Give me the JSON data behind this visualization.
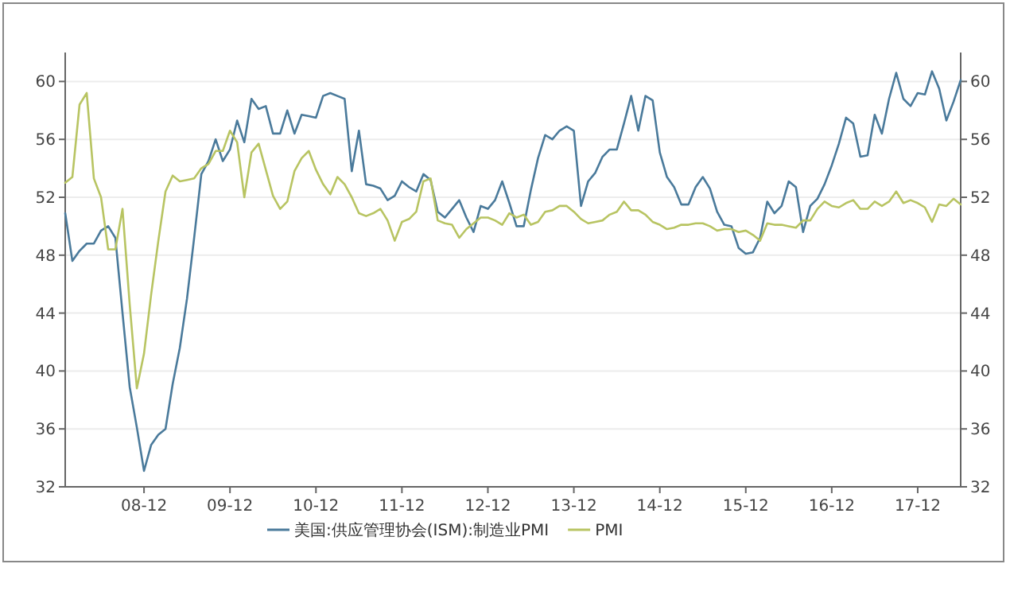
{
  "chart_data": {
    "type": "line",
    "x": [
      "2008-01",
      "2008-02",
      "2008-03",
      "2008-04",
      "2008-05",
      "2008-06",
      "2008-07",
      "2008-08",
      "2008-09",
      "2008-10",
      "2008-11",
      "2008-12",
      "2009-01",
      "2009-02",
      "2009-03",
      "2009-04",
      "2009-05",
      "2009-06",
      "2009-07",
      "2009-08",
      "2009-09",
      "2009-10",
      "2009-11",
      "2009-12",
      "2010-01",
      "2010-02",
      "2010-03",
      "2010-04",
      "2010-05",
      "2010-06",
      "2010-07",
      "2010-08",
      "2010-09",
      "2010-10",
      "2010-11",
      "2010-12",
      "2011-01",
      "2011-02",
      "2011-03",
      "2011-04",
      "2011-05",
      "2011-06",
      "2011-07",
      "2011-08",
      "2011-09",
      "2011-10",
      "2011-11",
      "2011-12",
      "2012-01",
      "2012-02",
      "2012-03",
      "2012-04",
      "2012-05",
      "2012-06",
      "2012-07",
      "2012-08",
      "2012-09",
      "2012-10",
      "2012-11",
      "2012-12",
      "2013-01",
      "2013-02",
      "2013-03",
      "2013-04",
      "2013-05",
      "2013-06",
      "2013-07",
      "2013-08",
      "2013-09",
      "2013-10",
      "2013-11",
      "2013-12",
      "2014-01",
      "2014-02",
      "2014-03",
      "2014-04",
      "2014-05",
      "2014-06",
      "2014-07",
      "2014-08",
      "2014-09",
      "2014-10",
      "2014-11",
      "2014-12",
      "2015-01",
      "2015-02",
      "2015-03",
      "2015-04",
      "2015-05",
      "2015-06",
      "2015-07",
      "2015-08",
      "2015-09",
      "2015-10",
      "2015-11",
      "2015-12",
      "2016-01",
      "2016-02",
      "2016-03",
      "2016-04",
      "2016-05",
      "2016-06",
      "2016-07",
      "2016-08",
      "2016-09",
      "2016-10",
      "2016-11",
      "2016-12",
      "2017-01",
      "2017-02",
      "2017-03",
      "2017-04",
      "2017-05",
      "2017-06",
      "2017-07",
      "2017-08",
      "2017-09",
      "2017-10",
      "2017-11",
      "2017-12",
      "2018-01",
      "2018-02",
      "2018-03",
      "2018-04",
      "2018-05",
      "2018-06"
    ],
    "series": [
      {
        "name": "美国:供应管理协会(ISM):制造业PMI",
        "color": "#4a7a9b",
        "values": [
          50.9,
          47.6,
          48.3,
          48.8,
          48.8,
          49.7,
          50.0,
          49.2,
          44.0,
          38.9,
          36.1,
          33.1,
          34.9,
          35.6,
          36.0,
          39.1,
          41.6,
          45.0,
          49.2,
          53.6,
          54.5,
          56.0,
          54.5,
          55.3,
          57.3,
          55.8,
          58.8,
          58.1,
          58.3,
          56.4,
          56.4,
          58.0,
          56.4,
          57.7,
          57.6,
          57.5,
          59.0,
          59.2,
          59.0,
          58.8,
          53.8,
          56.6,
          52.9,
          52.8,
          52.6,
          51.8,
          52.1,
          53.1,
          52.7,
          52.4,
          53.6,
          53.2,
          51.0,
          50.6,
          51.2,
          51.8,
          50.6,
          49.6,
          51.4,
          51.2,
          51.8,
          53.1,
          51.6,
          50.0,
          50.0,
          52.5,
          54.7,
          56.3,
          56.0,
          56.6,
          56.9,
          56.6,
          51.4,
          53.1,
          53.7,
          54.8,
          55.3,
          55.3,
          57.1,
          59.0,
          56.6,
          59.0,
          58.7,
          55.1,
          53.4,
          52.7,
          51.5,
          51.5,
          52.7,
          53.4,
          52.6,
          51.0,
          50.1,
          50.0,
          48.5,
          48.1,
          48.2,
          49.2,
          51.7,
          50.9,
          51.4,
          53.1,
          52.7,
          49.6,
          51.4,
          51.9,
          52.9,
          54.2,
          55.7,
          57.5,
          57.1,
          54.8,
          54.9,
          57.7,
          56.4,
          58.8,
          60.6,
          58.8,
          58.3,
          59.2,
          59.1,
          60.7,
          59.5,
          57.3,
          58.6,
          60.1
        ]
      },
      {
        "name": "PMI",
        "color": "#b8c462",
        "values": [
          53.0,
          53.4,
          58.4,
          59.2,
          53.3,
          52.0,
          48.4,
          48.4,
          51.2,
          44.6,
          38.8,
          41.2,
          45.3,
          49.0,
          52.4,
          53.5,
          53.1,
          53.2,
          53.3,
          54.0,
          54.3,
          55.2,
          55.2,
          56.6,
          55.8,
          52.0,
          55.1,
          55.7,
          53.9,
          52.1,
          51.2,
          51.7,
          53.8,
          54.7,
          55.2,
          53.9,
          52.9,
          52.2,
          53.4,
          52.9,
          52.0,
          50.9,
          50.7,
          50.9,
          51.2,
          50.4,
          49.0,
          50.3,
          50.5,
          51.0,
          53.1,
          53.3,
          50.4,
          50.2,
          50.1,
          49.2,
          49.8,
          50.2,
          50.6,
          50.6,
          50.4,
          50.1,
          50.9,
          50.6,
          50.8,
          50.1,
          50.3,
          51.0,
          51.1,
          51.4,
          51.4,
          51.0,
          50.5,
          50.2,
          50.3,
          50.4,
          50.8,
          51.0,
          51.7,
          51.1,
          51.1,
          50.8,
          50.3,
          50.1,
          49.8,
          49.9,
          50.1,
          50.1,
          50.2,
          50.2,
          50.0,
          49.7,
          49.8,
          49.8,
          49.6,
          49.7,
          49.4,
          49.0,
          50.2,
          50.1,
          50.1,
          50.0,
          49.9,
          50.4,
          50.4,
          51.2,
          51.7,
          51.4,
          51.3,
          51.6,
          51.8,
          51.2,
          51.2,
          51.7,
          51.4,
          51.7,
          52.4,
          51.6,
          51.8,
          51.6,
          51.3,
          50.3,
          51.5,
          51.4,
          51.9,
          51.5
        ]
      }
    ],
    "xlim": [
      "2008-01",
      "2018-06"
    ],
    "xticks": [
      {
        "value": "2008-12",
        "label": "08-12"
      },
      {
        "value": "2009-12",
        "label": "09-12"
      },
      {
        "value": "2010-12",
        "label": "10-12"
      },
      {
        "value": "2011-12",
        "label": "11-12"
      },
      {
        "value": "2012-12",
        "label": "12-12"
      },
      {
        "value": "2013-12",
        "label": "13-12"
      },
      {
        "value": "2014-12",
        "label": "14-12"
      },
      {
        "value": "2015-12",
        "label": "15-12"
      },
      {
        "value": "2016-12",
        "label": "16-12"
      },
      {
        "value": "2017-12",
        "label": "17-12"
      }
    ],
    "ylim": [
      32,
      62
    ],
    "yticks": [
      32,
      36,
      40,
      44,
      48,
      52,
      56,
      60
    ],
    "y2lim": [
      32,
      62
    ],
    "y2ticks": [
      32,
      36,
      40,
      44,
      48,
      52,
      56,
      60
    ],
    "grid": "y",
    "legend": "bottom",
    "marker": "none",
    "line_style": "solid"
  }
}
